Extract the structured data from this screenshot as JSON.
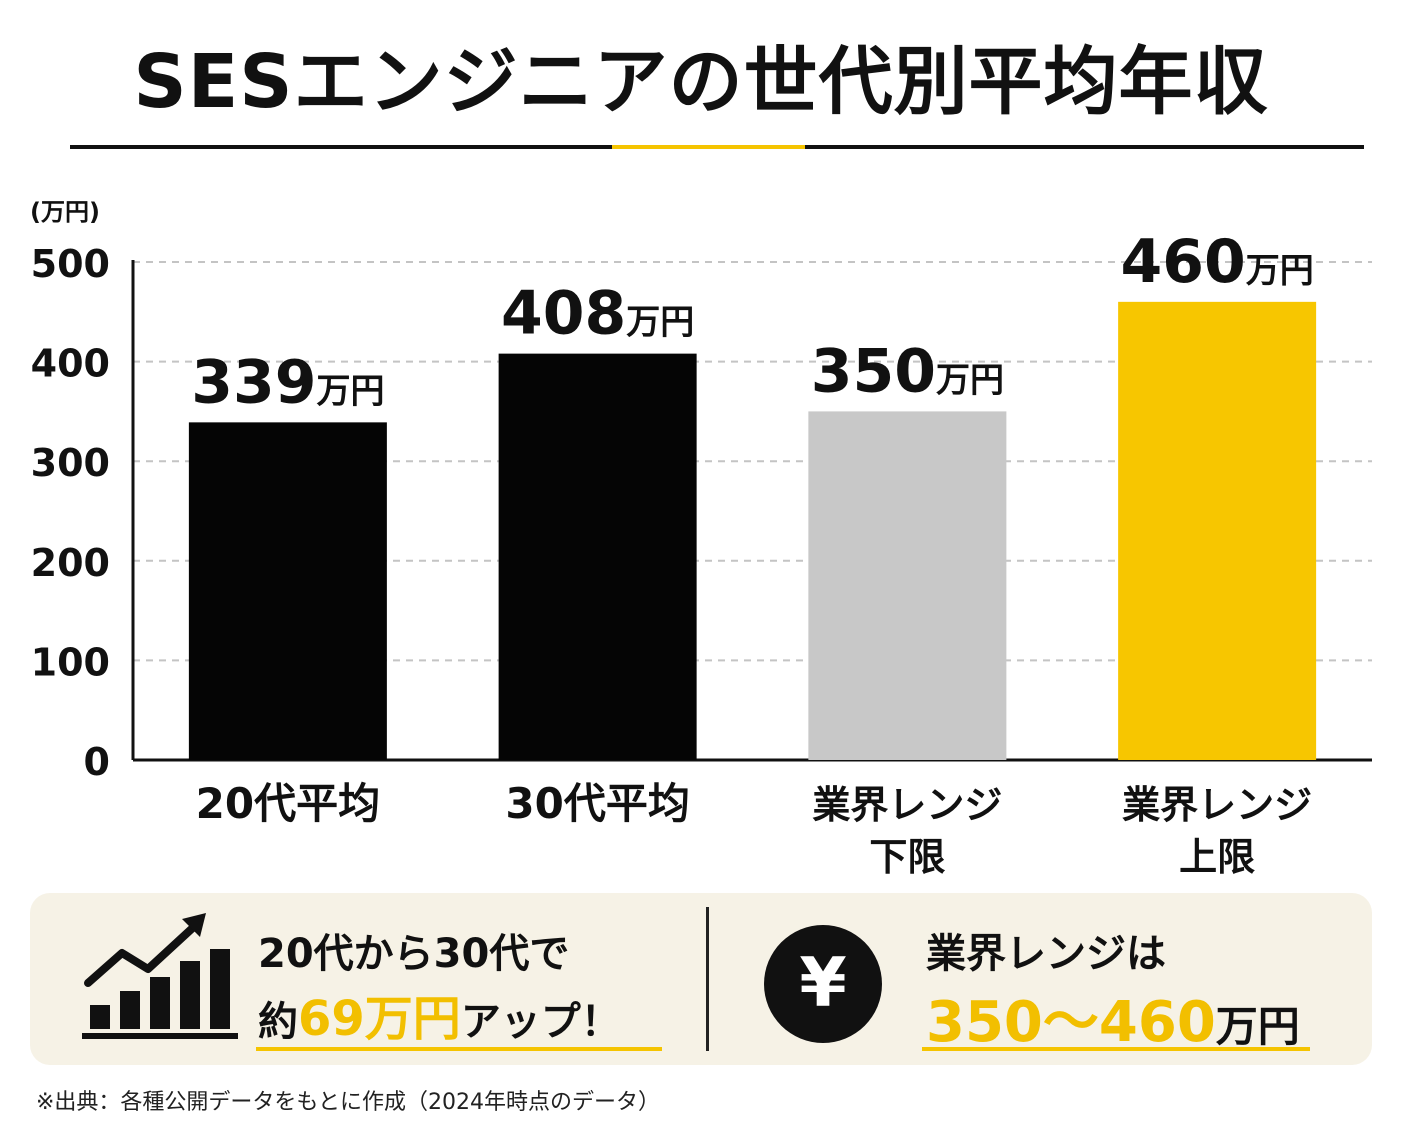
{
  "title": "SESエンジニアの世代別平均年収",
  "chart_data": {
    "type": "bar",
    "unit_label": "(万円)",
    "categories": [
      [
        "20代平均"
      ],
      [
        "30代平均"
      ],
      [
        "業界レンジ",
        "下限"
      ],
      [
        "業界レンジ",
        "上限"
      ]
    ],
    "values": [
      339,
      408,
      350,
      460
    ],
    "value_labels": [
      "339",
      "408",
      "350",
      "460"
    ],
    "value_unit": "万円",
    "bar_colors": [
      "#050505",
      "#050505",
      "#c8c8c8",
      "#f7c600"
    ],
    "ylim": [
      0,
      500
    ],
    "yticks": [
      0,
      100,
      200,
      300,
      400,
      500
    ],
    "ytick_labels": [
      "0",
      "100",
      "200",
      "300",
      "400",
      "500"
    ],
    "grid": true
  },
  "summary": {
    "growth_icon": "chart-growth-arrow-icon",
    "line1": "20代から30代で",
    "line2_prefix": "約",
    "line2_highlight": "69万円",
    "line2_suffix": "アップ！",
    "yen_icon": "¥",
    "range_line1": "業界レンジは",
    "range_highlight": "350〜460",
    "range_unit": "万円"
  },
  "footnote": "※出典：各種公開データをもとに作成（2024年時点のデータ）",
  "colors": {
    "accent": "#f5c400",
    "dark": "#050505",
    "gray": "#c8c8c8",
    "panel": "#f6f2e6"
  }
}
